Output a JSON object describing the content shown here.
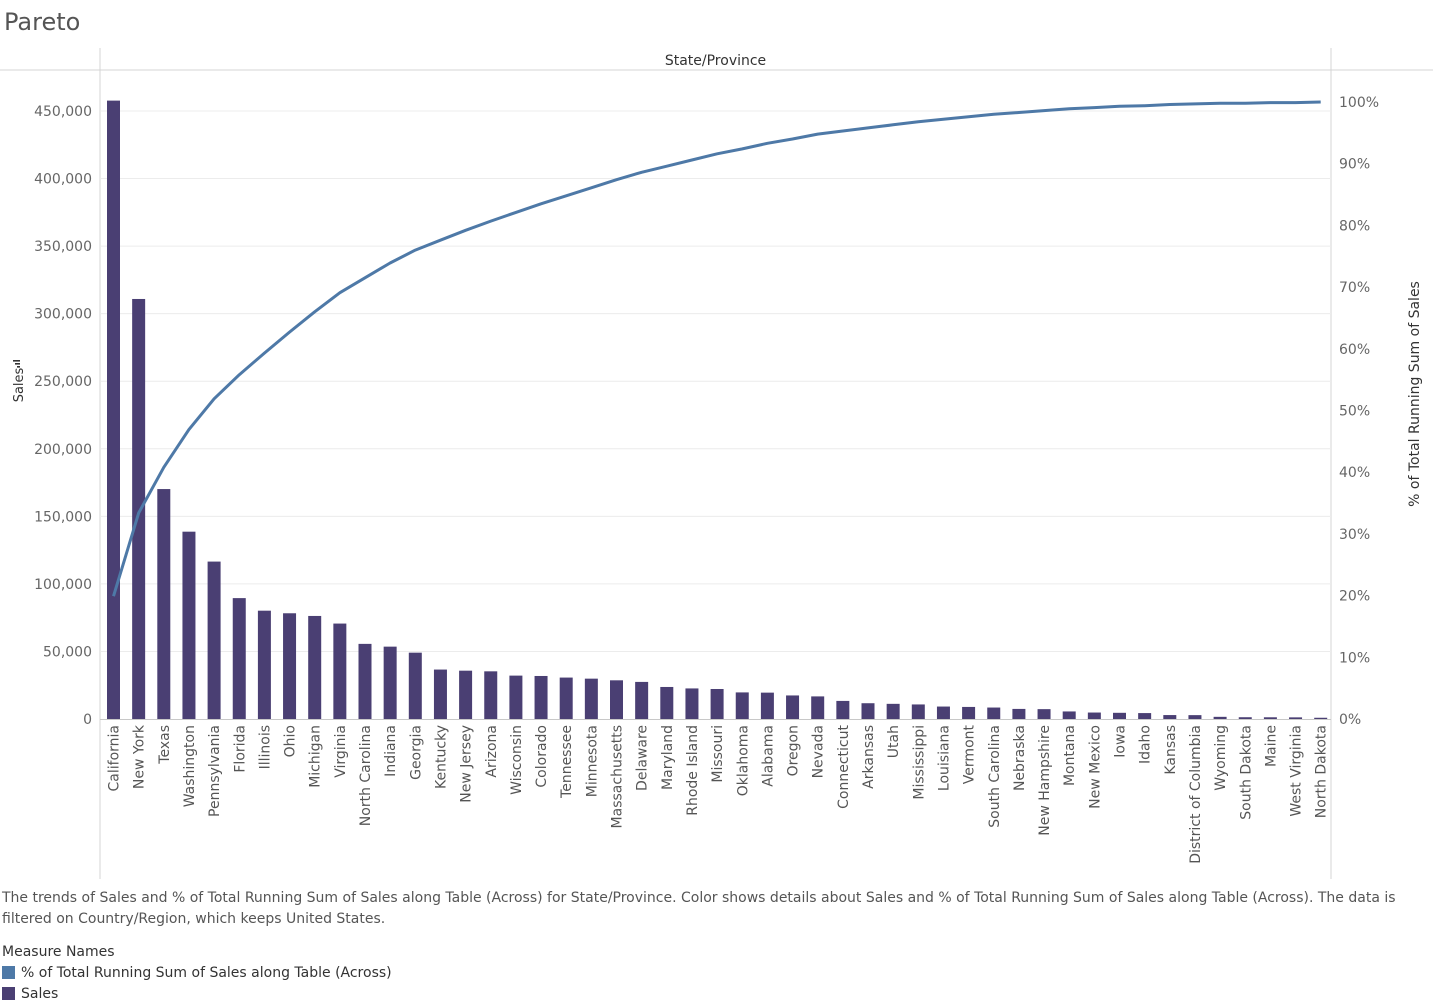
{
  "title": "Pareto",
  "caption": "The trends of Sales and % of Total Running Sum of Sales along Table (Across) for State/Province.  Color shows details about Sales and % of Total Running Sum of Sales along Table (Across). The data is filtered on Country/Region, which keeps United States.",
  "legend": {
    "title": "Measure Names",
    "items": [
      {
        "label": "% of Total Running Sum of Sales along Table (Across)",
        "color": "#4e79a7"
      },
      {
        "label": "Sales",
        "color": "#4a3f73"
      }
    ]
  },
  "chart_data": {
    "type": "bar",
    "column_header": "State/Province",
    "ylabel": "Sales",
    "y2label": "% of Total Running Sum of Sales",
    "ylim": [
      0,
      450000
    ],
    "y2lim": [
      0,
      100
    ],
    "yticks": [
      "0",
      "50,000",
      "100,000",
      "150,000",
      "200,000",
      "250,000",
      "300,000",
      "350,000",
      "400,000",
      "450,000"
    ],
    "y2ticks": [
      "0%",
      "10%",
      "20%",
      "30%",
      "40%",
      "50%",
      "60%",
      "70%",
      "80%",
      "90%",
      "100%"
    ],
    "grid": true,
    "categories": [
      "California",
      "New York",
      "Texas",
      "Washington",
      "Pennsylvania",
      "Florida",
      "Illinois",
      "Ohio",
      "Michigan",
      "Virginia",
      "North Carolina",
      "Indiana",
      "Georgia",
      "Kentucky",
      "New Jersey",
      "Arizona",
      "Wisconsin",
      "Colorado",
      "Tennessee",
      "Minnesota",
      "Massachusetts",
      "Delaware",
      "Maryland",
      "Rhode Island",
      "Missouri",
      "Oklahoma",
      "Alabama",
      "Oregon",
      "Nevada",
      "Connecticut",
      "Arkansas",
      "Utah",
      "Mississippi",
      "Louisiana",
      "Vermont",
      "South Carolina",
      "Nebraska",
      "New Hampshire",
      "Montana",
      "New Mexico",
      "Iowa",
      "Idaho",
      "Kansas",
      "District of Columbia",
      "Wyoming",
      "South Dakota",
      "Maine",
      "West Virginia",
      "North Dakota"
    ],
    "series": [
      {
        "name": "Sales",
        "color": "#4a3f73",
        "values": [
          457688,
          310876,
          170188,
          138641,
          116512,
          89474,
          80166,
          78258,
          76270,
          70637,
          55603,
          53555,
          49096,
          36592,
          35764,
          35282,
          32115,
          31841,
          30662,
          29863,
          28634,
          27451,
          23706,
          22628,
          22205,
          19683,
          19511,
          17431,
          16729,
          13384,
          11678,
          11220,
          10771,
          9217,
          8929,
          8482,
          7465,
          7293,
          5589,
          4784,
          4580,
          4382,
          2914,
          2865,
          1603,
          1316,
          1271,
          1210,
          920
        ]
      },
      {
        "name": "% of Total Running Sum of Sales along Table (Across)",
        "color": "#4e79a7",
        "values": [
          19.9,
          33.4,
          40.8,
          46.9,
          51.9,
          55.8,
          59.3,
          62.7,
          66.0,
          69.1,
          71.5,
          73.9,
          76.0,
          77.6,
          79.2,
          80.7,
          82.1,
          83.5,
          84.8,
          86.1,
          87.4,
          88.6,
          89.6,
          90.6,
          91.6,
          92.4,
          93.3,
          94.0,
          94.8,
          95.3,
          95.8,
          96.3,
          96.8,
          97.2,
          97.6,
          98.0,
          98.3,
          98.6,
          98.9,
          99.1,
          99.3,
          99.4,
          99.6,
          99.7,
          99.8,
          99.8,
          99.9,
          99.9,
          100.0
        ]
      }
    ]
  }
}
